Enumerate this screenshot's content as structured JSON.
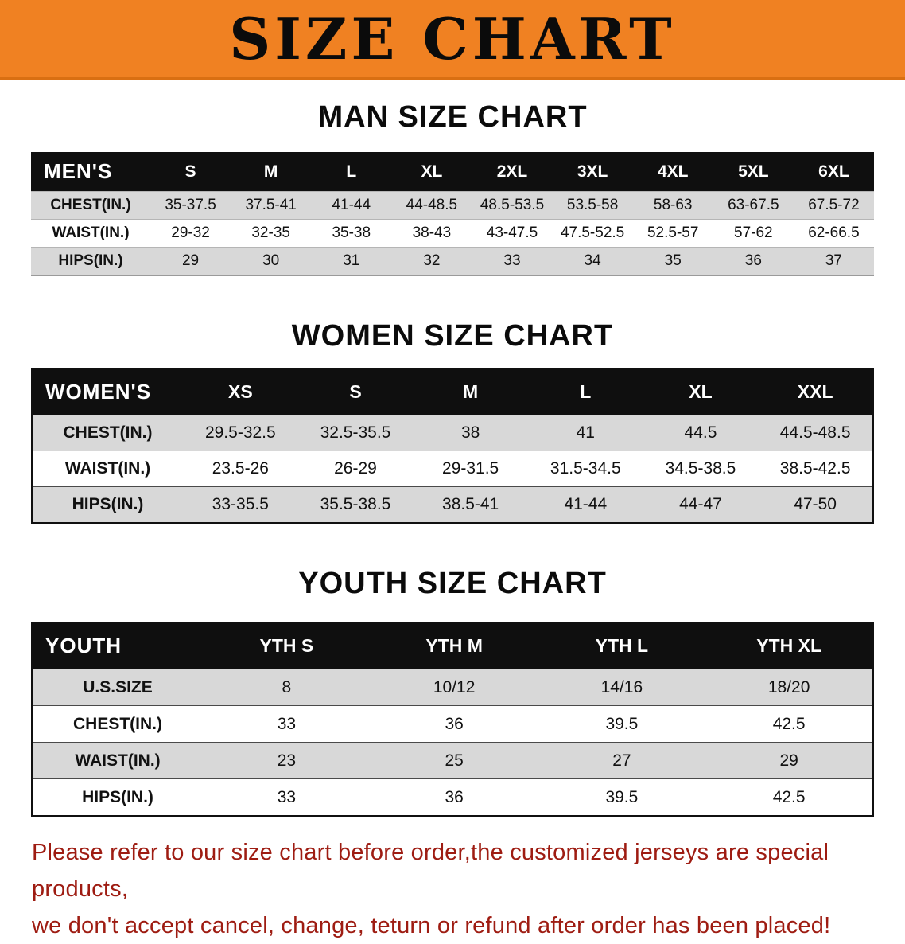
{
  "colors": {
    "banner-orange": "#f08122",
    "header-black": "#0f0f0f",
    "row-gray": "#d8d8d8",
    "note-red": "#9e1c12"
  },
  "banner": {
    "title": "SIZE CHART"
  },
  "sections": [
    {
      "title": "MAN SIZE CHART",
      "table": {
        "header_label": "MEN'S",
        "columns": [
          "S",
          "M",
          "L",
          "XL",
          "2XL",
          "3XL",
          "4XL",
          "5XL",
          "6XL"
        ],
        "rows": [
          {
            "label": "CHEST(IN.)",
            "values": [
              "35-37.5",
              "37.5-41",
              "41-44",
              "44-48.5",
              "48.5-53.5",
              "53.5-58",
              "58-63",
              "63-67.5",
              "67.5-72"
            ]
          },
          {
            "label": "WAIST(IN.)",
            "values": [
              "29-32",
              "32-35",
              "35-38",
              "38-43",
              "43-47.5",
              "47.5-52.5",
              "52.5-57",
              "57-62",
              "62-66.5"
            ]
          },
          {
            "label": "HIPS(IN.)",
            "values": [
              "29",
              "30",
              "31",
              "32",
              "33",
              "34",
              "35",
              "36",
              "37"
            ]
          }
        ]
      }
    },
    {
      "title": "WOMEN SIZE CHART",
      "table": {
        "header_label": "WOMEN'S",
        "columns": [
          "XS",
          "S",
          "M",
          "L",
          "XL",
          "XXL"
        ],
        "rows": [
          {
            "label": "CHEST(IN.)",
            "values": [
              "29.5-32.5",
              "32.5-35.5",
              "38",
              "41",
              "44.5",
              "44.5-48.5"
            ]
          },
          {
            "label": "WAIST(IN.)",
            "values": [
              "23.5-26",
              "26-29",
              "29-31.5",
              "31.5-34.5",
              "34.5-38.5",
              "38.5-42.5"
            ]
          },
          {
            "label": "HIPS(IN.)",
            "values": [
              "33-35.5",
              "35.5-38.5",
              "38.5-41",
              "41-44",
              "44-47",
              "47-50"
            ]
          }
        ]
      }
    },
    {
      "title": "YOUTH SIZE CHART",
      "table": {
        "header_label": "YOUTH",
        "columns": [
          "YTH S",
          "YTH M",
          "YTH L",
          "YTH XL"
        ],
        "rows": [
          {
            "label": "U.S.SIZE",
            "values": [
              "8",
              "10/12",
              "14/16",
              "18/20"
            ]
          },
          {
            "label": "CHEST(IN.)",
            "values": [
              "33",
              "36",
              "39.5",
              "42.5"
            ]
          },
          {
            "label": "WAIST(IN.)",
            "values": [
              "23",
              "25",
              "27",
              "29"
            ]
          },
          {
            "label": "HIPS(IN.)",
            "values": [
              "33",
              "36",
              "39.5",
              "42.5"
            ]
          }
        ]
      }
    }
  ],
  "footer_note": {
    "line1": "Please refer to our size chart before order,the customized jerseys are special products,",
    "line2": "we don't accept cancel, change, teturn or refund after order has been placed!"
  }
}
